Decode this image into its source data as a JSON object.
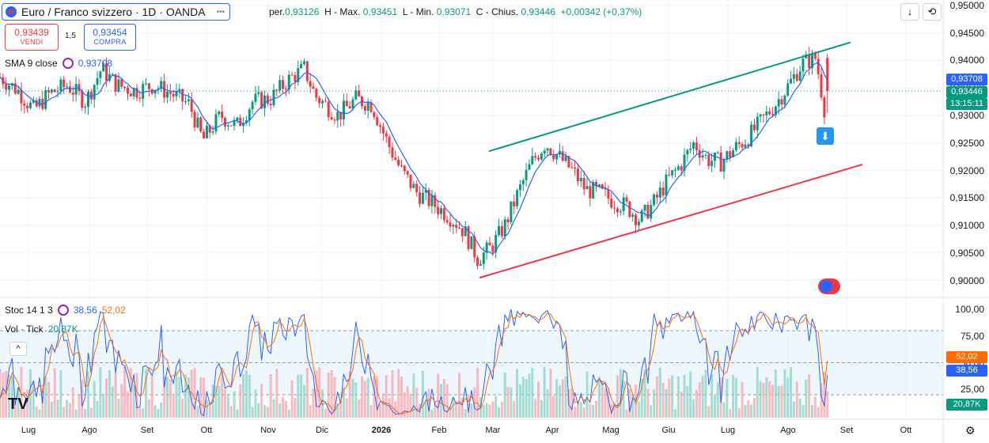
{
  "header": {
    "symbol_title": "Euro / Franco svizzero · 1D · OANDA",
    "more_label": "•••"
  },
  "ohlc": {
    "open_label": "per.",
    "open": "0,93126",
    "high_label": "H - Max.",
    "high": "0,93451",
    "low_label": "L - Min.",
    "low": "0,93071",
    "close_label": "C - Chius.",
    "close": "0,93446",
    "change": "+0,00342 (+0,37%)"
  },
  "trade": {
    "sell_price": "0,93439",
    "sell_label": "VENDI",
    "buy_price": "0,93454",
    "buy_label": "COMPRA",
    "spread": "1,5"
  },
  "indicators": {
    "sma": {
      "name": "SMA 9 close",
      "value": "0,93708"
    },
    "stoch": {
      "name": "Stoc 14 1 3",
      "k": "38,56",
      "d": "52,02"
    },
    "vol": {
      "name": "Vol · Tick",
      "value": "20,87K"
    }
  },
  "price_axis": {
    "labels": [
      "0,95000",
      "0,94500",
      "0,94000",
      "0,93500",
      "0,93000",
      "0,92500",
      "0,92000",
      "0,91500",
      "0,91000",
      "0,90500",
      "0,90000"
    ],
    "badge_sma": "0,93708",
    "badge_price": "0,93446",
    "badge_timer": "13:15:11"
  },
  "stoch_axis": {
    "labels": [
      "100,00",
      "75,00",
      "50,00",
      "25,00"
    ],
    "badge_d": "52,02",
    "badge_k": "38,56",
    "badge_vol": "20,87K"
  },
  "time_axis": {
    "months": [
      "Lug",
      "Ago",
      "Set",
      "Ott",
      "Nov",
      "Dic",
      "2026",
      "Feb",
      "Mar",
      "Apr",
      "Mag",
      "Giu",
      "Lug",
      "Ago",
      "Set",
      "Ott"
    ]
  },
  "colors": {
    "up": "#089981",
    "down": "#f23645",
    "sma": "#2962ff",
    "upper_channel": "#089981",
    "lower_channel": "#f23645",
    "stoch_k": "#2962ff",
    "stoch_d": "#ff6d00"
  },
  "chart_data": {
    "type": "candlestick",
    "symbol": "EUR/CHF",
    "timeframe": "1D",
    "ylim": [
      0.8975,
      0.951
    ],
    "close_series": [
      {
        "t": 0,
        "c": 0.937
      },
      {
        "t": 8,
        "c": 0.9345
      },
      {
        "t": 15,
        "c": 0.931
      },
      {
        "t": 22,
        "c": 0.934
      },
      {
        "t": 30,
        "c": 0.9355
      },
      {
        "t": 38,
        "c": 0.9325
      },
      {
        "t": 45,
        "c": 0.9385
      },
      {
        "t": 52,
        "c": 0.9355
      },
      {
        "t": 60,
        "c": 0.9345
      },
      {
        "t": 68,
        "c": 0.9355
      },
      {
        "t": 76,
        "c": 0.934
      },
      {
        "t": 84,
        "c": 0.932
      },
      {
        "t": 90,
        "c": 0.9255
      },
      {
        "t": 98,
        "c": 0.93
      },
      {
        "t": 105,
        "c": 0.928
      },
      {
        "t": 112,
        "c": 0.9325
      },
      {
        "t": 120,
        "c": 0.933
      },
      {
        "t": 128,
        "c": 0.9365
      },
      {
        "t": 135,
        "c": 0.9385
      },
      {
        "t": 140,
        "c": 0.9335
      },
      {
        "t": 150,
        "c": 0.93
      },
      {
        "t": 158,
        "c": 0.933
      },
      {
        "t": 165,
        "c": 0.932
      },
      {
        "t": 172,
        "c": 0.925
      },
      {
        "t": 178,
        "c": 0.92
      },
      {
        "t": 185,
        "c": 0.916
      },
      {
        "t": 192,
        "c": 0.914
      },
      {
        "t": 200,
        "c": 0.9115
      },
      {
        "t": 206,
        "c": 0.909
      },
      {
        "t": 212,
        "c": 0.904
      },
      {
        "t": 218,
        "c": 0.906
      },
      {
        "t": 224,
        "c": 0.91
      },
      {
        "t": 230,
        "c": 0.916
      },
      {
        "t": 236,
        "c": 0.9215
      },
      {
        "t": 242,
        "c": 0.925
      },
      {
        "t": 248,
        "c": 0.9225
      },
      {
        "t": 254,
        "c": 0.92
      },
      {
        "t": 260,
        "c": 0.9165
      },
      {
        "t": 266,
        "c": 0.916
      },
      {
        "t": 272,
        "c": 0.9145
      },
      {
        "t": 278,
        "c": 0.9135
      },
      {
        "t": 284,
        "c": 0.911
      },
      {
        "t": 290,
        "c": 0.914
      },
      {
        "t": 296,
        "c": 0.918
      },
      {
        "t": 302,
        "c": 0.921
      },
      {
        "t": 308,
        "c": 0.925
      },
      {
        "t": 314,
        "c": 0.922
      },
      {
        "t": 320,
        "c": 0.9215
      },
      {
        "t": 326,
        "c": 0.924
      },
      {
        "t": 332,
        "c": 0.926
      },
      {
        "t": 338,
        "c": 0.929
      },
      {
        "t": 344,
        "c": 0.932
      },
      {
        "t": 350,
        "c": 0.9355
      },
      {
        "t": 356,
        "c": 0.9395
      },
      {
        "t": 362,
        "c": 0.9405
      },
      {
        "t": 366,
        "c": 0.931
      },
      {
        "t": 368,
        "c": 0.9345
      }
    ],
    "channel": {
      "upper": [
        [
          0.9235,
          "start"
        ],
        [
          0.943,
          "end"
        ]
      ],
      "lower": [
        [
          0.9005,
          "start"
        ],
        [
          0.921,
          "end"
        ]
      ]
    },
    "stoch_levels": [
      80,
      20
    ],
    "last": {
      "close": 0.93446,
      "sma9": 0.93708,
      "stoch_k": 38.56,
      "stoch_d": 52.02,
      "volume": "20,87K"
    }
  }
}
